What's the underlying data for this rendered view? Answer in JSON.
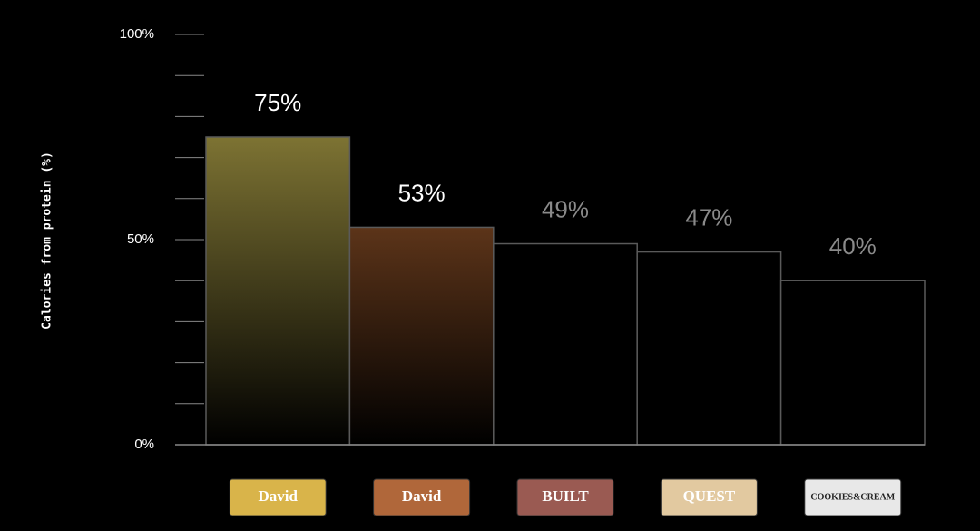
{
  "chart_data": {
    "type": "bar",
    "ylabel": "Calories from protein (%)",
    "categories": [
      "David",
      "David",
      "BUILT",
      "QUEST",
      "COOKIES&CREAM"
    ],
    "values": [
      75,
      53,
      49,
      47,
      40
    ],
    "value_labels": [
      "75%",
      "53%",
      "49%",
      "47%",
      "40%"
    ],
    "colors": [
      "#7d7333",
      "#5c3419",
      "#000000",
      "#000000",
      "#000000"
    ],
    "label_colors": [
      "#ffffff",
      "#ffffff",
      "#8a8a8a",
      "#8a8a8a",
      "#8a8a8a"
    ],
    "wrapper_colors": [
      "#d9b44a",
      "#b0673a",
      "#9a5a52",
      "#e2c9a0",
      "#e8e8e8"
    ],
    "ylim": [
      0,
      100
    ],
    "yticks": [
      {
        "value": 0,
        "label": "0%"
      },
      {
        "value": 50,
        "label": "50%"
      },
      {
        "value": 100,
        "label": "100%"
      }
    ],
    "minor_yticks": [
      10,
      20,
      30,
      40,
      60,
      70,
      80,
      90
    ]
  }
}
